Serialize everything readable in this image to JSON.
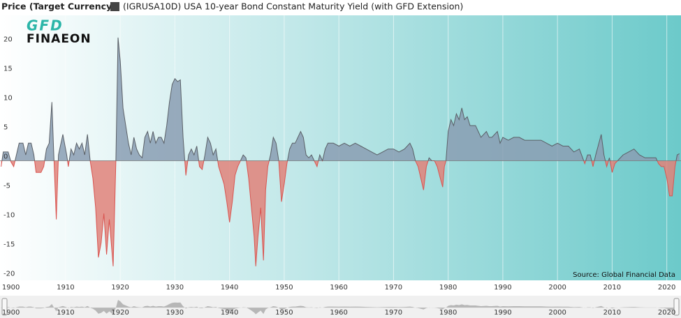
{
  "header": {
    "label": "Price (Target Currency)",
    "series_title": "(IGRUSA10D) USA 10-year Bond Constant Maturity Yield (with GFD Extension)"
  },
  "logo": {
    "top": "GFD",
    "bottom": "FINAEON"
  },
  "chart_data": {
    "type": "area",
    "source": "Source: Global Financial Data",
    "x": [
      1898.2,
      1898.6,
      1899.5,
      1900.0,
      1900.5,
      1901,
      1901.5,
      1902.2,
      1902.7,
      1903.2,
      1903.7,
      1904.2,
      1904.6,
      1905.5,
      1906,
      1906.5,
      1907,
      1907.5,
      1907.8,
      1908.3,
      1908.7,
      1909.5,
      1910.2,
      1910.5,
      1911,
      1911.5,
      1912,
      1912.5,
      1913,
      1913.5,
      1914,
      1914.5,
      1915,
      1915.5,
      1916,
      1916.5,
      1917,
      1917.5,
      1918,
      1918.7,
      1919.2,
      1919.6,
      1920,
      1920.5,
      1921,
      1921.5,
      1922,
      1922.5,
      1923,
      1923.5,
      1924,
      1924.5,
      1925,
      1925.5,
      1926,
      1926.5,
      1927,
      1927.5,
      1928,
      1928.5,
      1929,
      1929.5,
      1930,
      1930.5,
      1931,
      1931.5,
      1932,
      1932.5,
      1933,
      1933.5,
      1934,
      1934.5,
      1935,
      1935.5,
      1936,
      1936.5,
      1937,
      1937.5,
      1938,
      1939,
      1939.5,
      1940,
      1940.5,
      1941,
      1941.5,
      1942,
      1942.5,
      1943,
      1943.5,
      1944,
      1944.5,
      1944.8,
      1945.2,
      1945.7,
      1946.2,
      1946.6,
      1947,
      1947.5,
      1948,
      1948.5,
      1949,
      1949.5,
      1950,
      1950.5,
      1951,
      1951.5,
      1952,
      1952.5,
      1953,
      1953.5,
      1954,
      1954.5,
      1955,
      1955.5,
      1956,
      1956.5,
      1957,
      1957.5,
      1958,
      1959,
      1960,
      1961,
      1962,
      1963,
      1964,
      1965,
      1966,
      1967,
      1968,
      1969,
      1970,
      1971,
      1972,
      1973,
      1973.5,
      1974,
      1974.5,
      1975,
      1975.5,
      1976,
      1976.5,
      1977,
      1977.5,
      1978,
      1978.7,
      1979,
      1979.3,
      1979.6,
      1980,
      1980.5,
      1981,
      1981.5,
      1982,
      1982.5,
      1983,
      1983.5,
      1984,
      1985,
      1985.5,
      1986,
      1987,
      1987.5,
      1988,
      1989,
      1989.5,
      1990,
      1991,
      1992,
      1993,
      1994,
      1995,
      1996,
      1997,
      1998,
      1999,
      2000,
      2001,
      2002,
      2003,
      2004,
      2005,
      2005.5,
      2006,
      2006.5,
      2007,
      2008,
      2008.5,
      2009,
      2009.5,
      2010,
      2010.5,
      2011,
      2012,
      2013,
      2014,
      2015,
      2016,
      2017,
      2018,
      2018.5,
      2019,
      2019.5,
      2020,
      2020.5,
      2021,
      2021.5,
      2021.9,
      2022.3
    ],
    "values": [
      -1,
      1.5,
      1.5,
      -0.2,
      -1,
      1,
      3,
      3,
      1,
      3,
      3,
      1,
      -2,
      -2,
      -1,
      2,
      3,
      10,
      2,
      -10,
      1,
      4.5,
      1,
      -1,
      2,
      1,
      3,
      2,
      3,
      1,
      4.5,
      0,
      -3,
      -8,
      -16.5,
      -14,
      -9,
      -16,
      -10,
      -18,
      0,
      21,
      17,
      9,
      6,
      3,
      1,
      4,
      2,
      1,
      0.5,
      4,
      5,
      3,
      5,
      3,
      4,
      4,
      3,
      6,
      10,
      13,
      14,
      13.5,
      13.8,
      4,
      -2.5,
      1,
      2,
      1,
      2.5,
      -1,
      -1.5,
      1,
      4,
      3,
      1,
      2,
      -1,
      -4,
      -7,
      -10.5,
      -7,
      -2.5,
      -1,
      0,
      1,
      0.5,
      -3,
      -8,
      -13,
      -18,
      -13,
      -8,
      -17,
      -5,
      -1,
      1,
      4,
      3,
      0,
      -7,
      -4,
      -0.5,
      2,
      3,
      3,
      4,
      5,
      4,
      1,
      0.5,
      1,
      0,
      -1,
      1,
      0,
      2,
      3,
      3,
      2.5,
      3,
      2.5,
      3,
      2.5,
      2,
      1.5,
      1,
      1.5,
      2,
      2,
      1.5,
      2,
      3,
      2,
      0,
      -1,
      -3,
      -5,
      -1,
      0.5,
      0,
      0,
      -1,
      -3.5,
      -4.5,
      -1,
      0,
      5,
      7,
      6,
      8,
      7,
      9,
      7,
      7.5,
      6,
      6,
      5,
      4,
      5,
      4,
      4,
      5,
      3,
      4,
      3.5,
      4,
      4,
      3.5,
      3.5,
      3.5,
      3.5,
      3,
      2.5,
      3,
      2.5,
      2.5,
      1.5,
      2,
      -0.5,
      1,
      1,
      -1,
      1,
      4.5,
      1,
      -1,
      0.5,
      -2,
      -0.5,
      0,
      1,
      1.5,
      2,
      1,
      0.5,
      0.5,
      0.5,
      -0.5,
      -1,
      -1,
      -3,
      -6,
      -6,
      -1,
      1,
      1.2
    ],
    "positive_color": "#8a9db3",
    "negative_color": "#e0837a",
    "line_color": "#5a5f66",
    "negative_line_color": "#d9534f",
    "xlim": [
      1898,
      2022.6
    ],
    "ylim": [
      -20.4,
      24.8
    ],
    "xticks": [
      1900,
      1910,
      1920,
      1930,
      1940,
      1950,
      1960,
      1970,
      1980,
      1990,
      2000,
      2010,
      2020
    ],
    "yticks": [
      20,
      15,
      10,
      5,
      0,
      -5,
      -10,
      -15,
      -20
    ],
    "xgrid": true
  }
}
